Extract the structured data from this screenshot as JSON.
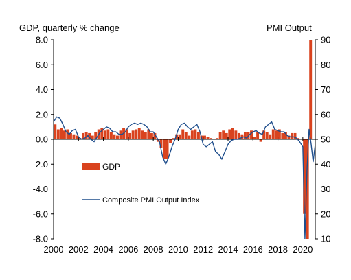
{
  "chart_data": {
    "type": "bar+line",
    "left_axis_title": "GDP, quarterly % change",
    "right_axis_title": "PMI Output",
    "left_ylim": [
      -8.0,
      8.0
    ],
    "left_ticks": [
      "8.0",
      "6.0",
      "4.0",
      "2.0",
      "0.0",
      "-2.0",
      "-4.0",
      "-6.0",
      "-8.0"
    ],
    "right_ylim": [
      10,
      90
    ],
    "right_ticks": [
      "90",
      "80",
      "70",
      "60",
      "50",
      "40",
      "30",
      "20",
      "10"
    ],
    "xlim": [
      2000,
      2021
    ],
    "x_ticks": [
      "2000",
      "2002",
      "2004",
      "2006",
      "2008",
      "2010",
      "2012",
      "2014",
      "2016",
      "2018",
      "2020"
    ],
    "legend": [
      {
        "label": "GDP",
        "type": "bar"
      },
      {
        "label": "Composite PMI Output Index",
        "type": "line"
      }
    ],
    "colors": {
      "gdp": "#d9431e",
      "pmi": "#1f4e8c",
      "axis": "#000000"
    },
    "gdp": {
      "name": "GDP",
      "x": [
        2000.125,
        2000.375,
        2000.625,
        2000.875,
        2001.125,
        2001.375,
        2001.625,
        2001.875,
        2002.125,
        2002.375,
        2002.625,
        2002.875,
        2003.125,
        2003.375,
        2003.625,
        2003.875,
        2004.125,
        2004.375,
        2004.625,
        2004.875,
        2005.125,
        2005.375,
        2005.625,
        2005.875,
        2006.125,
        2006.375,
        2006.625,
        2006.875,
        2007.125,
        2007.375,
        2007.625,
        2007.875,
        2008.125,
        2008.375,
        2008.625,
        2008.875,
        2009.125,
        2009.375,
        2009.625,
        2009.875,
        2010.125,
        2010.375,
        2010.625,
        2010.875,
        2011.125,
        2011.375,
        2011.625,
        2011.875,
        2012.125,
        2012.375,
        2012.625,
        2012.875,
        2013.125,
        2013.375,
        2013.625,
        2013.875,
        2014.125,
        2014.375,
        2014.625,
        2014.875,
        2015.125,
        2015.375,
        2015.625,
        2015.875,
        2016.125,
        2016.375,
        2016.625,
        2016.875,
        2017.125,
        2017.375,
        2017.625,
        2017.875,
        2018.125,
        2018.375,
        2018.625,
        2018.875,
        2019.125,
        2019.375,
        2019.625,
        2019.875,
        2020.125,
        2020.375,
        2020.625
      ],
      "values": [
        1.2,
        0.8,
        0.9,
        0.7,
        0.8,
        0.5,
        0.4,
        0.3,
        0.1,
        0.5,
        0.6,
        0.5,
        0.3,
        0.6,
        0.8,
        0.9,
        0.7,
        0.8,
        0.6,
        0.4,
        0.3,
        0.7,
        0.9,
        0.8,
        0.5,
        0.7,
        0.8,
        0.9,
        0.7,
        0.6,
        0.8,
        0.5,
        0.5,
        -0.2,
        -0.7,
        -1.6,
        -1.6,
        -0.3,
        0.1,
        0.4,
        0.4,
        0.8,
        0.6,
        0.3,
        0.7,
        0.8,
        0.6,
        0.3,
        0.3,
        0.2,
        0.1,
        0.0,
        0.1,
        0.6,
        0.7,
        0.5,
        0.8,
        0.9,
        0.7,
        0.5,
        0.4,
        0.6,
        0.6,
        0.7,
        0.2,
        0.6,
        -0.2,
        0.7,
        0.6,
        0.4,
        0.8,
        0.7,
        0.8,
        0.5,
        0.6,
        0.3,
        0.5,
        0.5,
        0.1,
        0.0,
        -6.0,
        -8.5,
        8.0
      ]
    },
    "pmi": {
      "name": "Composite PMI Output Index",
      "x": [
        2000.0,
        2000.25,
        2000.5,
        2000.75,
        2001.0,
        2001.25,
        2001.5,
        2001.75,
        2002.0,
        2002.25,
        2002.5,
        2002.75,
        2003.0,
        2003.25,
        2003.5,
        2003.75,
        2004.0,
        2004.25,
        2004.5,
        2004.75,
        2005.0,
        2005.25,
        2005.5,
        2005.75,
        2006.0,
        2006.25,
        2006.5,
        2006.75,
        2007.0,
        2007.25,
        2007.5,
        2007.75,
        2008.0,
        2008.25,
        2008.5,
        2008.75,
        2009.0,
        2009.25,
        2009.5,
        2009.75,
        2010.0,
        2010.25,
        2010.5,
        2010.75,
        2011.0,
        2011.25,
        2011.5,
        2011.75,
        2012.0,
        2012.25,
        2012.5,
        2012.75,
        2013.0,
        2013.25,
        2013.5,
        2013.75,
        2014.0,
        2014.25,
        2014.5,
        2014.75,
        2015.0,
        2015.25,
        2015.5,
        2015.75,
        2016.0,
        2016.25,
        2016.5,
        2016.75,
        2017.0,
        2017.25,
        2017.5,
        2017.75,
        2018.0,
        2018.25,
        2018.5,
        2018.75,
        2019.0,
        2019.25,
        2019.5,
        2019.75,
        2020.0,
        2020.17,
        2020.33,
        2020.5,
        2020.67,
        2020.83,
        2021.0
      ],
      "values": [
        57,
        59,
        58.5,
        56,
        53,
        52,
        53.5,
        54,
        51,
        50,
        50.5,
        51.5,
        50,
        49,
        51,
        53,
        54,
        55,
        54.5,
        53,
        53,
        52,
        52,
        53,
        55,
        56,
        56.5,
        56,
        56.5,
        56,
        55,
        53,
        53,
        51,
        49,
        43,
        40,
        43,
        47,
        50,
        54,
        56,
        56.5,
        55,
        54,
        55,
        56,
        53,
        48,
        47,
        48,
        49,
        45,
        44,
        42,
        45,
        48,
        49.5,
        50,
        50,
        50.5,
        51,
        50.5,
        52,
        53,
        53.5,
        52.5,
        52,
        55,
        56,
        57,
        54,
        53.5,
        53,
        53,
        51.5,
        51,
        51,
        50.5,
        49,
        47,
        10,
        37,
        54,
        48,
        41,
        48
      ]
    }
  }
}
